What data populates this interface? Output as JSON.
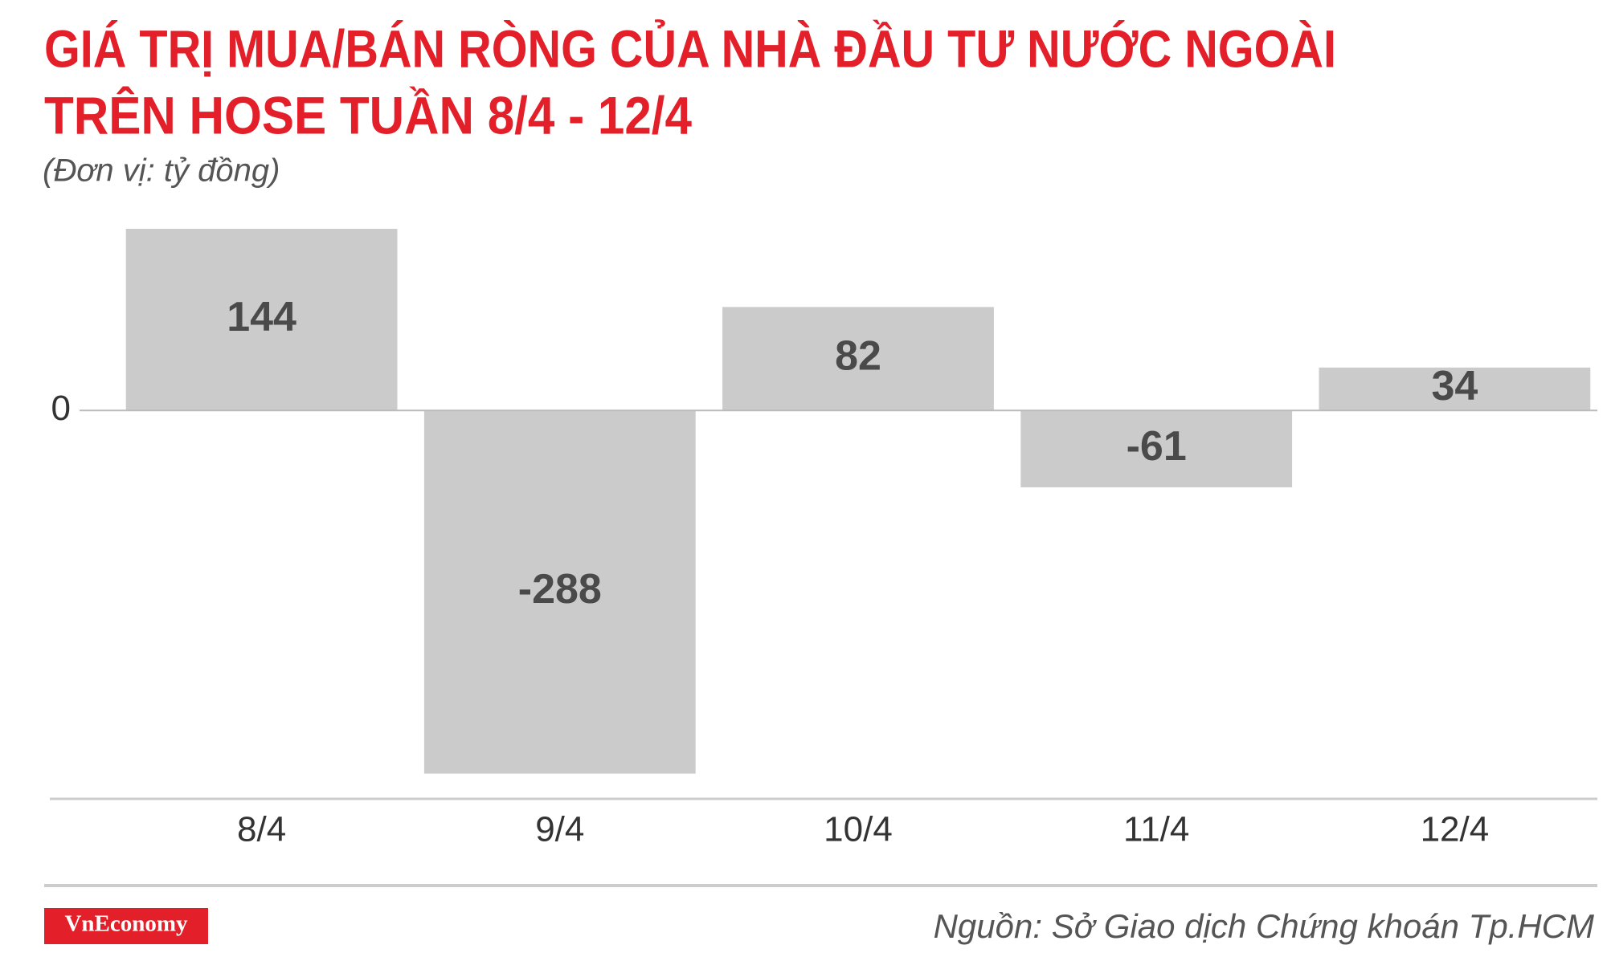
{
  "chart_data": {
    "type": "bar",
    "title": [
      "GIÁ TRỊ MUA/BÁN RÒNG CỦA NHÀ ĐẦU TƯ NƯỚC NGOÀI",
      "TRÊN HOSE TUẦN 8/4 - 12/4"
    ],
    "subtitle": "(Đơn vị: tỷ đồng)",
    "categories": [
      "8/4",
      "9/4",
      "10/4",
      "11/4",
      "12/4"
    ],
    "values": [
      144,
      -288,
      82,
      -61,
      34
    ],
    "color": "#cccbcc",
    "ylim": [
      -308,
      144
    ],
    "yticks": [
      0
    ],
    "source": "Nguồn: Sở Giao dịch Chứng khoán Tp.HCM",
    "brand": "VnEconomy"
  }
}
